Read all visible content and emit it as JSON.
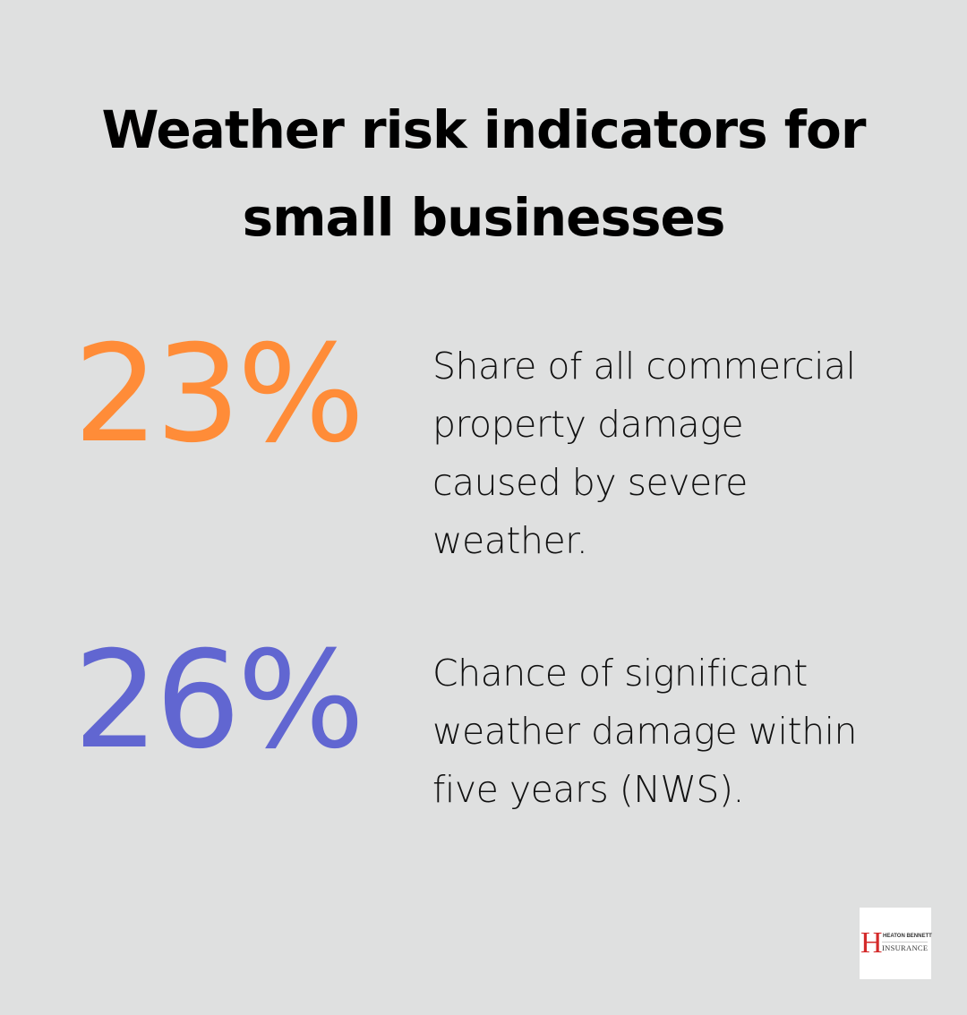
{
  "title": {
    "line1": "Weather risk indicators for",
    "line2": "small businesses"
  },
  "stats": [
    {
      "value": "23%",
      "color": "#FF8C38",
      "description": "Share of all commercial property damage caused by severe weather.",
      "lines": [
        "Share of all commercial",
        "property damage",
        "caused by severe",
        "weather."
      ]
    },
    {
      "value": "26%",
      "color": "#6166D1",
      "description": "Chance of significant weather damage within five years (NWS).",
      "lines": [
        "Chance of significant",
        "weather damage within",
        "five years (NWS)."
      ]
    }
  ],
  "logo": {
    "letter": "H",
    "line1": "HEATON BENNETT",
    "line2": "INSURANCE",
    "accent_color": "#D42A2A"
  },
  "colors": {
    "background": "#DFE0E0",
    "text": "#000000"
  }
}
